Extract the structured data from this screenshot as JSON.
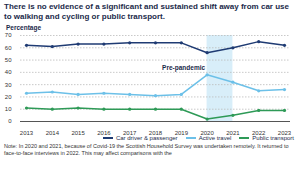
{
  "chart_data": {
    "type": "line",
    "title": "There is no evidence of a significant and sustained shift away from car use to walking and cycling or public transport.",
    "y_label": "Percentage",
    "x": [
      2013,
      2014,
      2015,
      2016,
      2017,
      2018,
      2019,
      2020,
      2021,
      2022,
      2023
    ],
    "series": [
      {
        "name": "Car driver & passenger",
        "color": "#1f3b73",
        "values": [
          62,
          61,
          63,
          63,
          64,
          64,
          64,
          56,
          60,
          65,
          62
        ]
      },
      {
        "name": "Active travel",
        "color": "#6cc0e8",
        "values": [
          23,
          24,
          22,
          23,
          22,
          21,
          22,
          38,
          32,
          25,
          26
        ]
      },
      {
        "name": "Public transport",
        "color": "#2e9a57",
        "values": [
          11,
          10,
          11,
          10,
          10,
          10,
          10,
          2,
          5,
          9,
          9
        ]
      }
    ],
    "xlim": [
      2013,
      2023
    ],
    "xticks": [
      2013,
      2014,
      2015,
      2016,
      2017,
      2018,
      2019,
      2020,
      2021,
      2022,
      2023
    ],
    "ylim": [
      0,
      70
    ],
    "yticks": [
      0,
      10,
      20,
      30,
      40,
      50,
      60,
      70
    ],
    "grid": true,
    "marker": "circle",
    "shaded_range": [
      2020,
      2021
    ],
    "annotation": "Pre-pandemic",
    "legend": "bottom",
    "note": "Note: In 2020 and 2021, because of Covid-19 the Scottish Household Survey was undertaken remotely. It returned to face-to-face interviews in 2022. This may affect comparisons with the"
  }
}
